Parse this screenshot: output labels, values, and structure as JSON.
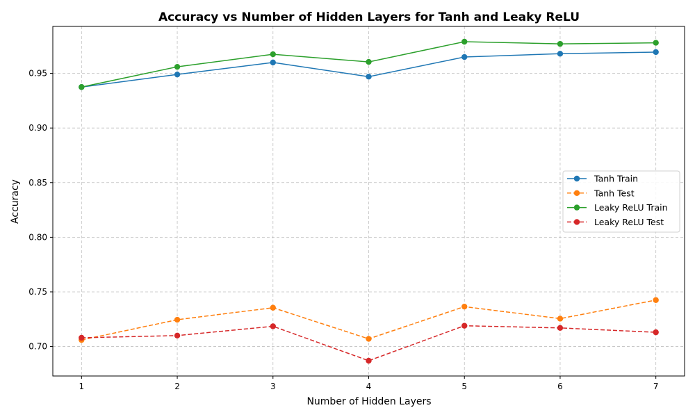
{
  "chart_data": {
    "type": "line",
    "title": "Accuracy vs Number of Hidden Layers for Tanh and Leaky ReLU",
    "xlabel": "Number of Hidden Layers",
    "ylabel": "Accuracy",
    "x": [
      1,
      2,
      3,
      4,
      5,
      6,
      7
    ],
    "xlim": [
      0.7,
      7.3
    ],
    "ylim": [
      0.673,
      0.993
    ],
    "yticks": [
      0.7,
      0.75,
      0.8,
      0.85,
      0.9,
      0.95
    ],
    "ytick_labels": [
      "0.70",
      "0.75",
      "0.80",
      "0.85",
      "0.90",
      "0.95"
    ],
    "xtick_labels": [
      "1",
      "2",
      "3",
      "4",
      "5",
      "6",
      "7"
    ],
    "grid": true,
    "legend_position": "center-right",
    "series": [
      {
        "name": "Tanh Train",
        "color": "#1f77b4",
        "dashed": false,
        "values": [
          0.9375,
          0.949,
          0.96,
          0.947,
          0.965,
          0.968,
          0.9695
        ]
      },
      {
        "name": "Tanh Test",
        "color": "#ff7f0e",
        "dashed": true,
        "values": [
          0.706,
          0.7245,
          0.7355,
          0.707,
          0.7365,
          0.7255,
          0.7425
        ]
      },
      {
        "name": "Leaky ReLU Train",
        "color": "#2ca02c",
        "dashed": false,
        "values": [
          0.9375,
          0.956,
          0.9675,
          0.9605,
          0.979,
          0.977,
          0.978
        ]
      },
      {
        "name": "Leaky ReLU Test",
        "color": "#d62728",
        "dashed": true,
        "values": [
          0.708,
          0.71,
          0.7185,
          0.687,
          0.719,
          0.717,
          0.713
        ]
      }
    ]
  }
}
